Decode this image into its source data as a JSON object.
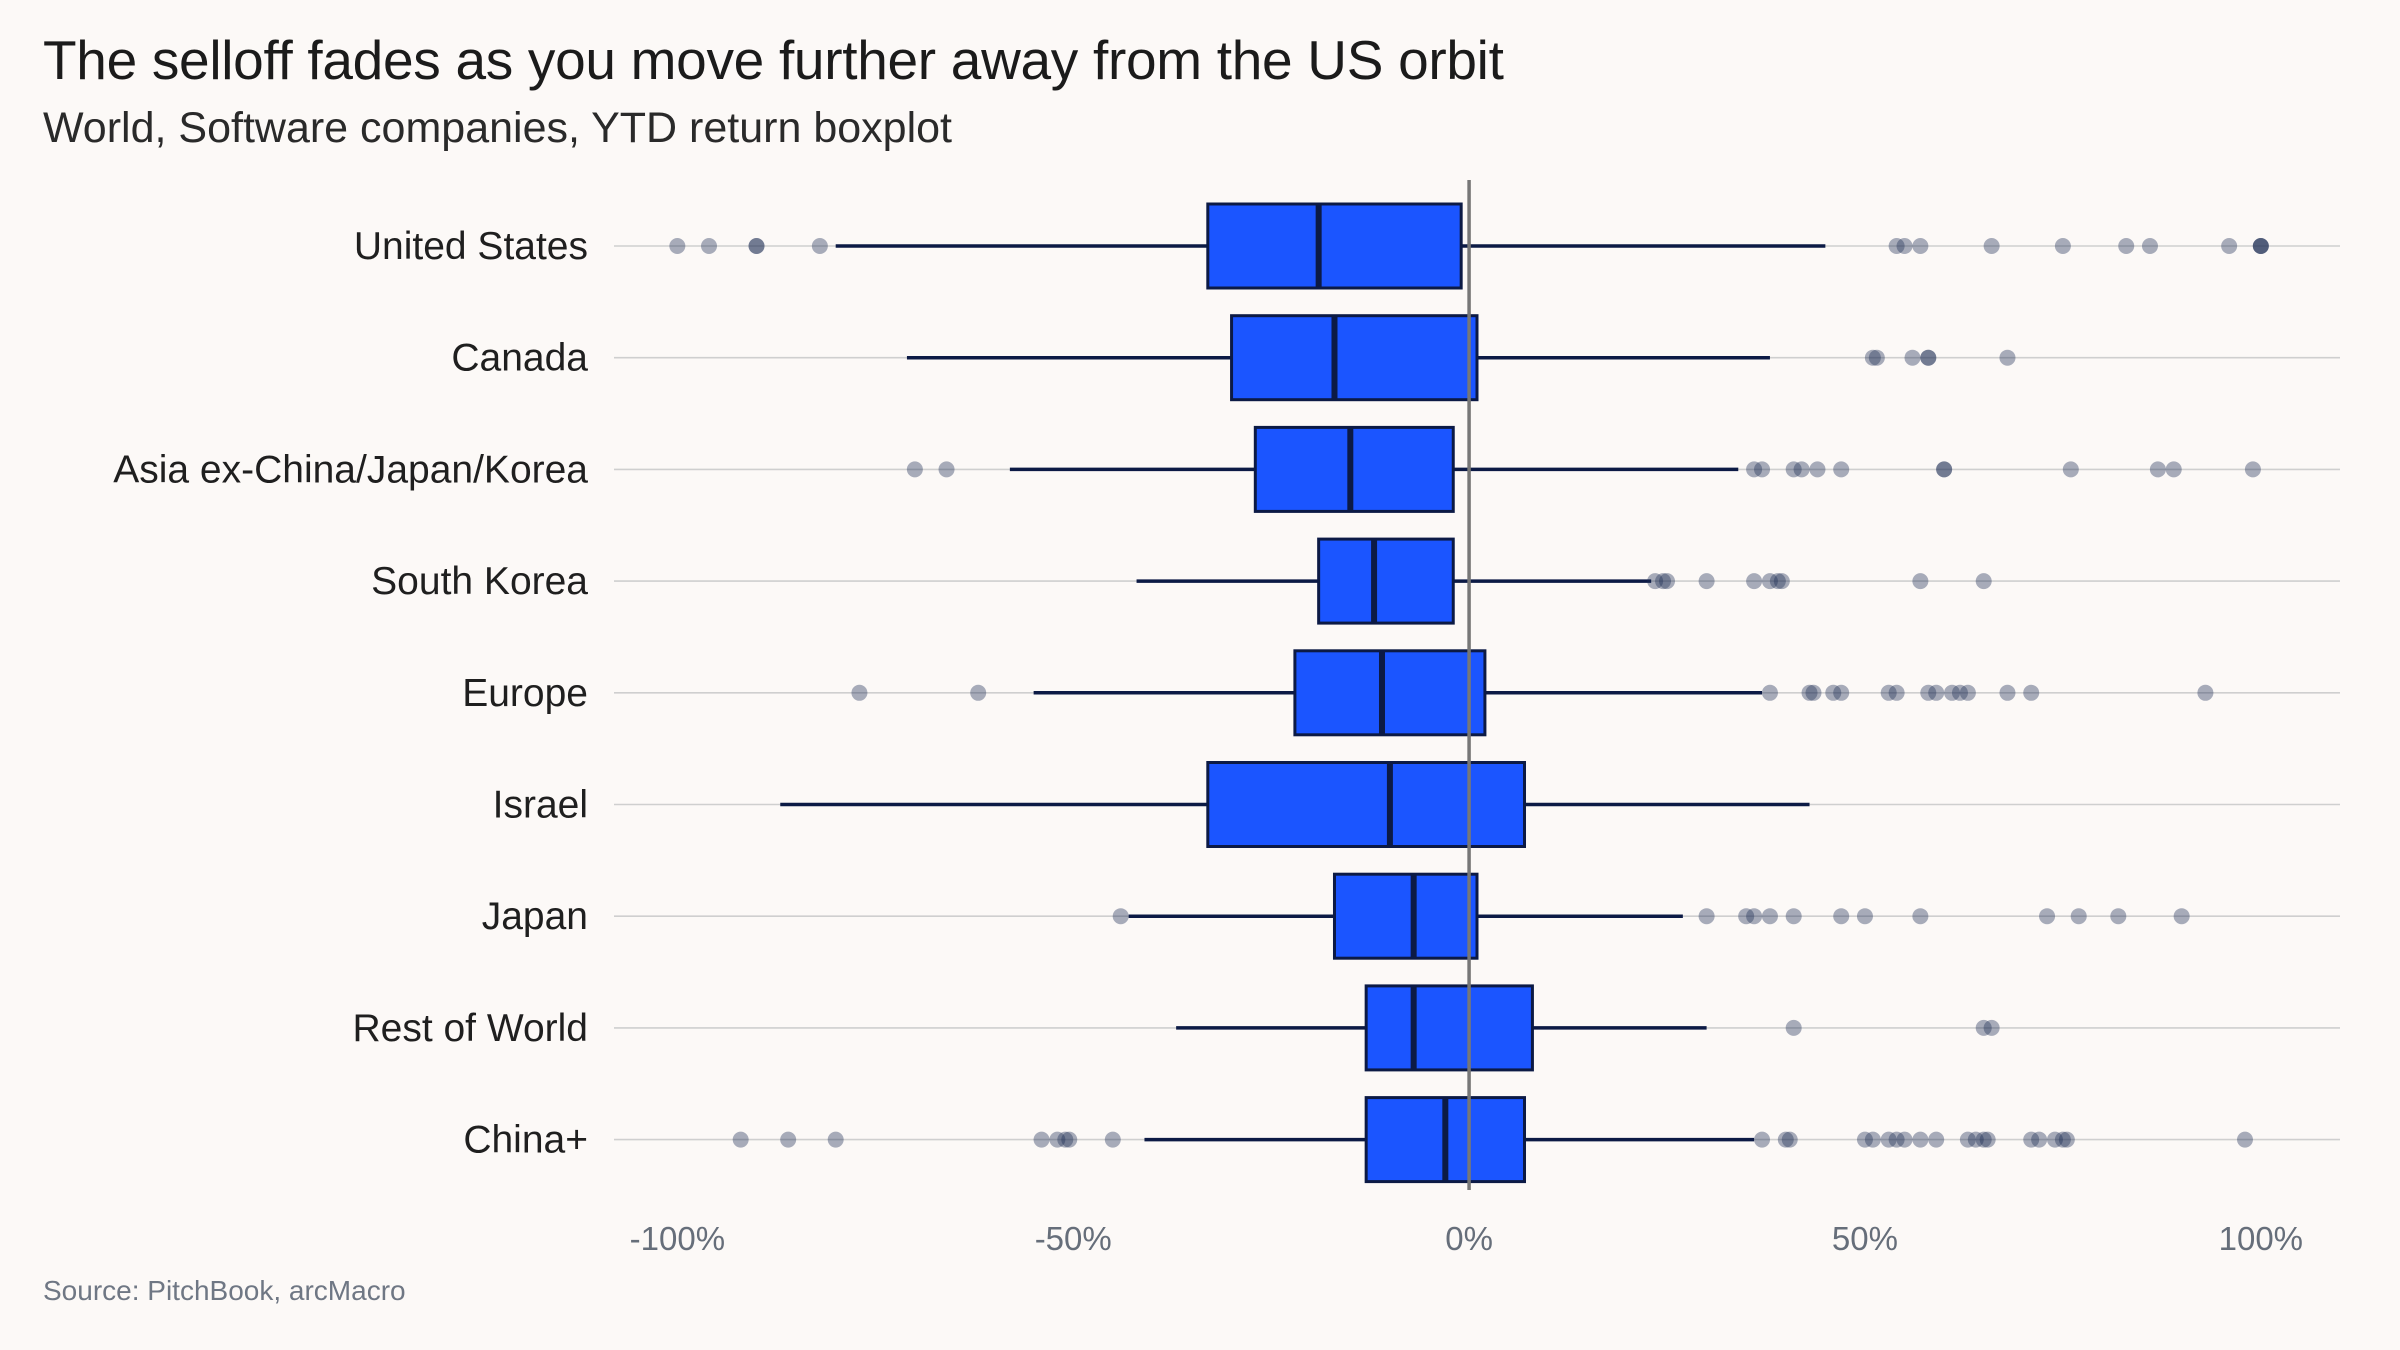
{
  "chart_data": {
    "type": "boxplot",
    "orientation": "horizontal",
    "title": "The selloff fades as you move further away from the US orbit",
    "subtitle": "World, Software companies, YTD return boxplot",
    "source": "Source: PitchBook, arcMacro",
    "x_axis": {
      "min": -108,
      "max": 110,
      "ticks": [
        -100,
        -50,
        0,
        50,
        100
      ],
      "tick_labels": [
        "-100%",
        "-50%",
        "0%",
        "50%",
        "100%"
      ],
      "reference_line": 0
    },
    "colors": {
      "box": "#1b55ff",
      "box_edge": "#0c1a45",
      "outlier": "#1e2d55",
      "ref_line": "#777777",
      "grid": "#cfcfcf"
    },
    "categories": [
      {
        "name": "United States",
        "whisker_low": -80,
        "q1": -33,
        "median": -19,
        "q3": -1,
        "whisker_high": 45,
        "outliers": [
          -100,
          -96,
          -90,
          -90,
          -82,
          54,
          55,
          57,
          66,
          75,
          83,
          86,
          96,
          100,
          100,
          100
        ]
      },
      {
        "name": "Canada",
        "whisker_low": -71,
        "q1": -30,
        "median": -17,
        "q3": 1,
        "whisker_high": 38,
        "outliers": [
          51,
          51.5,
          56,
          58,
          58,
          68
        ]
      },
      {
        "name": "Asia ex-China/Japan/Korea",
        "whisker_low": -58,
        "q1": -27,
        "median": -15,
        "q3": -2,
        "whisker_high": 34,
        "outliers": [
          -70,
          -66,
          36,
          37,
          41,
          42,
          44,
          47,
          60,
          60,
          76,
          87,
          89,
          99
        ]
      },
      {
        "name": "South Korea",
        "whisker_low": -42,
        "q1": -19,
        "median": -12,
        "q3": -2,
        "whisker_high": 23,
        "outliers": [
          23.5,
          24.5,
          25,
          30,
          36,
          38,
          39,
          39.5,
          57,
          65
        ]
      },
      {
        "name": "Europe",
        "whisker_low": -55,
        "q1": -22,
        "median": -11,
        "q3": 2,
        "whisker_high": 37,
        "outliers": [
          -77,
          -62,
          38,
          43,
          43.5,
          46,
          47,
          53,
          54,
          58,
          59,
          61,
          62,
          63,
          68,
          71,
          93
        ]
      },
      {
        "name": "Israel",
        "whisker_low": -87,
        "q1": -33,
        "median": -10,
        "q3": 7,
        "whisker_high": 43,
        "outliers": []
      },
      {
        "name": "Japan",
        "whisker_low": -43,
        "q1": -17,
        "median": -7,
        "q3": 1,
        "whisker_high": 27,
        "outliers": [
          -44,
          30,
          35,
          36,
          38,
          41,
          47,
          50,
          57,
          73,
          77,
          82,
          90
        ]
      },
      {
        "name": "Rest of World",
        "whisker_low": -37,
        "q1": -13,
        "median": -7,
        "q3": 8,
        "whisker_high": 30,
        "outliers": [
          41,
          65,
          66
        ]
      },
      {
        "name": "China+",
        "whisker_low": -41,
        "q1": -13,
        "median": -3,
        "q3": 7,
        "whisker_high": 36,
        "outliers": [
          -92,
          -86,
          -80,
          -54,
          -52,
          -51,
          -50.5,
          -45,
          37,
          40,
          40.5,
          50,
          51,
          53,
          54,
          55,
          57,
          59,
          63,
          64,
          65,
          65.5,
          71,
          72,
          74,
          75,
          75.5,
          98
        ]
      }
    ]
  }
}
